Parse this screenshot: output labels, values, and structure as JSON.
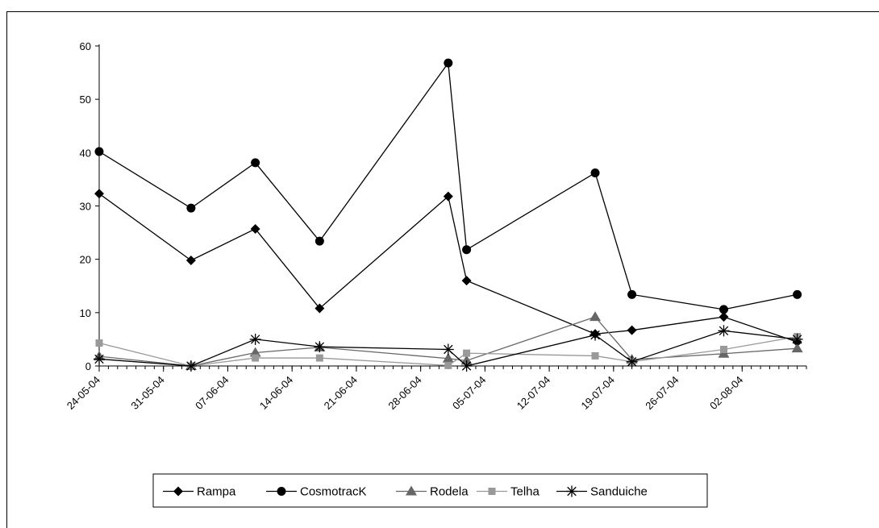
{
  "chart_data": {
    "type": "line",
    "title": "",
    "xlabel": "",
    "ylabel": "",
    "ylim": [
      0,
      60
    ],
    "yticks": [
      0,
      10,
      20,
      30,
      40,
      50,
      60
    ],
    "xlim": [
      "2004-05-24",
      "2004-08-09"
    ],
    "xtick_labels": [
      "24-05-04",
      "31-05-04",
      "07-06-04",
      "14-06-04",
      "21-06-04",
      "28-06-04",
      "05-07-04",
      "12-07-04",
      "19-07-04",
      "26-07-04",
      "02-08-04"
    ],
    "grid": false,
    "legend_position": "bottom",
    "series": [
      {
        "name": "Rampa",
        "marker": "diamond",
        "color": "#000000",
        "points": [
          [
            "2004-05-24",
            32.3
          ],
          [
            "2004-06-03",
            19.8
          ],
          [
            "2004-06-10",
            25.7
          ],
          [
            "2004-06-17",
            10.8
          ],
          [
            "2004-07-01",
            31.8
          ],
          [
            "2004-07-03",
            16.0
          ],
          [
            "2004-07-17",
            6.0
          ],
          [
            "2004-07-21",
            6.7
          ],
          [
            "2004-07-31",
            9.2
          ],
          [
            "2004-08-08",
            4.5
          ]
        ]
      },
      {
        "name": "CosmotracK",
        "marker": "circle",
        "color": "#000000",
        "points": [
          [
            "2004-05-24",
            40.2
          ],
          [
            "2004-06-03",
            29.6
          ],
          [
            "2004-06-10",
            38.1
          ],
          [
            "2004-06-17",
            23.4
          ],
          [
            "2004-07-01",
            56.8
          ],
          [
            "2004-07-03",
            21.8
          ],
          [
            "2004-07-17",
            36.2
          ],
          [
            "2004-07-21",
            13.4
          ],
          [
            "2004-07-31",
            10.6
          ],
          [
            "2004-08-08",
            13.4
          ]
        ]
      },
      {
        "name": "Rodela",
        "marker": "triangle",
        "color": "#666666",
        "points": [
          [
            "2004-05-24",
            1.8
          ],
          [
            "2004-06-03",
            0.0
          ],
          [
            "2004-06-10",
            2.5
          ],
          [
            "2004-06-17",
            3.5
          ],
          [
            "2004-07-01",
            1.4
          ],
          [
            "2004-07-03",
            1.0
          ],
          [
            "2004-07-17",
            9.2
          ],
          [
            "2004-07-21",
            1.2
          ],
          [
            "2004-07-31",
            2.3
          ],
          [
            "2004-08-08",
            3.3
          ]
        ]
      },
      {
        "name": "Telha",
        "marker": "square",
        "color": "#999999",
        "points": [
          [
            "2004-05-24",
            4.3
          ],
          [
            "2004-06-03",
            0.0
          ],
          [
            "2004-06-10",
            1.5
          ],
          [
            "2004-06-17",
            1.5
          ],
          [
            "2004-07-01",
            0.1
          ],
          [
            "2004-07-03",
            2.4
          ],
          [
            "2004-07-17",
            1.9
          ],
          [
            "2004-07-21",
            0.8
          ],
          [
            "2004-07-31",
            3.1
          ],
          [
            "2004-08-08",
            5.5
          ]
        ]
      },
      {
        "name": "Sanduiche",
        "marker": "star",
        "color": "#000000",
        "points": [
          [
            "2004-05-24",
            1.3
          ],
          [
            "2004-06-03",
            0.0
          ],
          [
            "2004-06-10",
            5.0
          ],
          [
            "2004-06-17",
            3.6
          ],
          [
            "2004-07-01",
            3.1
          ],
          [
            "2004-07-03",
            0.0
          ],
          [
            "2004-07-17",
            5.8
          ],
          [
            "2004-07-21",
            0.8
          ],
          [
            "2004-07-31",
            6.6
          ],
          [
            "2004-08-08",
            5.0
          ]
        ]
      }
    ]
  }
}
